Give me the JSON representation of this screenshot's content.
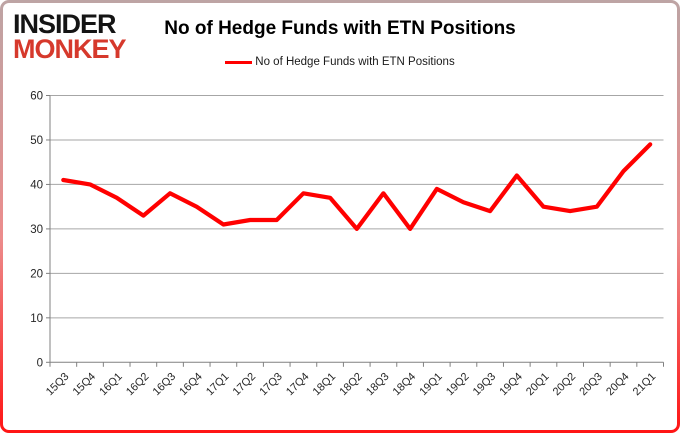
{
  "logo": {
    "line1": "INSIDER",
    "line2": "MONKEY"
  },
  "header": {
    "title": "No of Hedge Funds with ETN Positions"
  },
  "legend": {
    "label": "No of Hedge Funds with ETN Positions"
  },
  "colors": {
    "series_line": "#ff0000",
    "grid": "#a6a6a6",
    "axis": "#808080",
    "axis_text": "#262626",
    "logo_black": "#141414",
    "logo_red": "#d6392c",
    "border_bottom": "#ff1414"
  },
  "chart_data": {
    "type": "line",
    "title": "No of Hedge Funds with ETN Positions",
    "xlabel": "",
    "ylabel": "",
    "categories": [
      "15Q3",
      "15Q4",
      "16Q1",
      "16Q2",
      "16Q3",
      "16Q4",
      "17Q1",
      "17Q2",
      "17Q3",
      "17Q4",
      "18Q1",
      "18Q2",
      "18Q3",
      "18Q4",
      "19Q1",
      "19Q2",
      "19Q3",
      "19Q4",
      "20Q1",
      "20Q2",
      "20Q3",
      "20Q4",
      "21Q1"
    ],
    "series": [
      {
        "name": "No of Hedge Funds with ETN Positions",
        "color": "#ff0000",
        "values": [
          41,
          40,
          37,
          33,
          38,
          35,
          31,
          32,
          32,
          38,
          37,
          30,
          38,
          30,
          39,
          36,
          34,
          42,
          35,
          34,
          35,
          43,
          49
        ]
      }
    ],
    "ylim": [
      0,
      60
    ],
    "ytick_step": 10,
    "yticks": [
      0,
      10,
      20,
      30,
      40,
      50,
      60
    ],
    "grid": true,
    "legend_position": "top-center"
  }
}
